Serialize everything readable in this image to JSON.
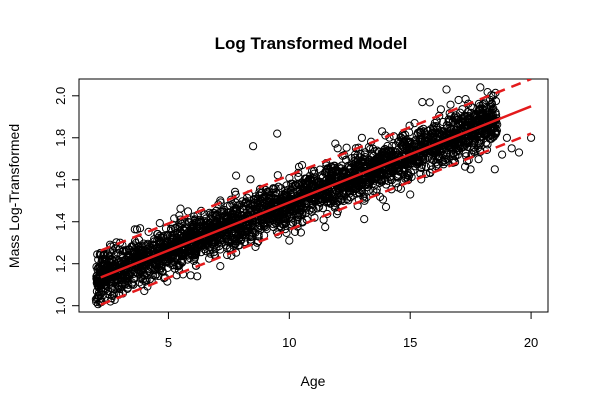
{
  "chart_data": {
    "type": "scatter",
    "title": "Log Transformed Model",
    "xlabel": "Age",
    "ylabel": "Mass Log-Transformed",
    "xlim": [
      1.3,
      20.7
    ],
    "ylim": [
      0.97,
      2.08
    ],
    "x_ticks": [
      5,
      10,
      15,
      20
    ],
    "x_tick_labels": [
      "5",
      "10",
      "15",
      "20"
    ],
    "y_ticks": [
      1.0,
      1.2,
      1.4,
      1.6,
      1.8,
      2.0
    ],
    "y_tick_labels": [
      "1.0",
      "1.2",
      "1.4",
      "1.6",
      "1.8",
      "2.0"
    ],
    "grid": false,
    "point_marker": "open-circle",
    "point_color": "#000000",
    "fit_color": "#e31a1c",
    "fit_line": {
      "x": [
        2.2,
        20.0
      ],
      "y": [
        1.135,
        1.95
      ]
    },
    "upper_band": {
      "x": [
        2.2,
        20.0
      ],
      "y": [
        1.263,
        2.08
      ]
    },
    "lower_band": {
      "x": [
        2.2,
        20.0
      ],
      "y": [
        1.005,
        1.82
      ]
    },
    "points_summary": {
      "n_approx": 3000,
      "x_range": [
        2.0,
        20.0
      ],
      "center_line": {
        "intercept": 1.034,
        "slope": 0.0458
      },
      "spread_sd": 0.055
    },
    "points": [
      [
        2.0,
        1.03
      ],
      [
        2.1,
        1.09
      ],
      [
        2.2,
        1.16
      ],
      [
        2.3,
        1.05
      ],
      [
        2.5,
        1.13
      ],
      [
        2.6,
        1.02
      ],
      [
        2.8,
        1.2
      ],
      [
        3.0,
        1.3
      ],
      [
        3.3,
        1.08
      ],
      [
        3.5,
        1.11
      ],
      [
        3.6,
        1.16
      ],
      [
        4.0,
        1.07
      ],
      [
        4.5,
        1.15
      ],
      [
        5.5,
        1.41
      ],
      [
        6.5,
        1.3
      ],
      [
        7.5,
        1.35
      ],
      [
        7.8,
        1.62
      ],
      [
        8.5,
        1.76
      ],
      [
        8.6,
        1.28
      ],
      [
        9.5,
        1.82
      ],
      [
        10.0,
        1.31
      ],
      [
        12.0,
        1.75
      ],
      [
        12.0,
        1.45
      ],
      [
        13.0,
        1.8
      ],
      [
        14.0,
        1.47
      ],
      [
        14.5,
        1.78
      ],
      [
        15.0,
        1.53
      ],
      [
        15.5,
        1.97
      ],
      [
        16.5,
        2.03
      ],
      [
        17.0,
        1.98
      ],
      [
        17.5,
        1.65
      ],
      [
        17.9,
        2.04
      ],
      [
        18.5,
        1.65
      ],
      [
        18.8,
        1.72
      ],
      [
        19.0,
        1.8
      ],
      [
        19.2,
        1.75
      ],
      [
        19.5,
        1.73
      ],
      [
        20.0,
        1.8
      ]
    ]
  }
}
